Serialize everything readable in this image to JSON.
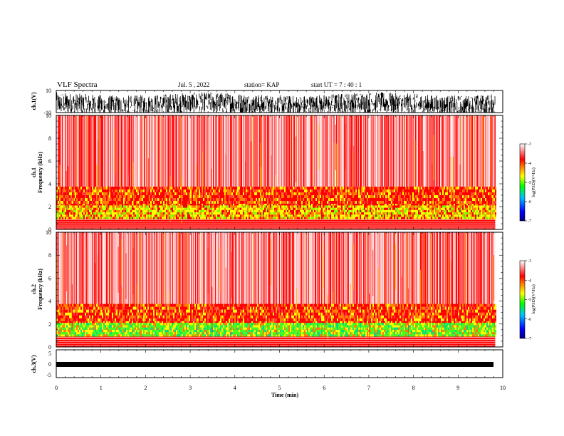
{
  "header": {
    "title": "VLF Spectra",
    "date": "Jul. 5 , 2022",
    "station": "station= KAP",
    "start": "start UT = 7 : 40 : 1"
  },
  "chart_data": [
    {
      "id": "ch1-waveform",
      "type": "line",
      "ylabel": "ch.1(V)",
      "yticks": [
        "10",
        "-10"
      ],
      "ylim": [
        -10,
        10
      ],
      "xlim": [
        0,
        10
      ],
      "x_end": 9.83,
      "grid": false
    },
    {
      "id": "ch1-spectrogram",
      "type": "heatmap",
      "ylabel": "ch.1 Frequency (kHz)",
      "ylim": [
        0,
        10
      ],
      "yticks": [
        "0",
        "2",
        "4",
        "6",
        "8",
        "10"
      ],
      "xlim": [
        0,
        10
      ],
      "x_end": 9.83,
      "colorbar": {
        "label": "log(PSD)(V²/Hz)",
        "range": [
          -7,
          -3
        ],
        "ticks": [
          "-3",
          "-4",
          "-5",
          "-6",
          "-7"
        ],
        "colors": [
          "#000080",
          "#0000ff",
          "#00c0ff",
          "#00ff00",
          "#ffff00",
          "#ff8000",
          "#ff0000",
          "#ffffff"
        ]
      }
    },
    {
      "id": "ch2-spectrogram",
      "type": "heatmap",
      "ylabel": "ch.2 Frequency (kHz)",
      "ylim": [
        0,
        10
      ],
      "yticks": [
        "0",
        "2",
        "4",
        "6",
        "8",
        "10"
      ],
      "xlim": [
        0,
        10
      ],
      "x_end": 9.83,
      "colorbar": {
        "label": "log(PSD)(V²/Hz)",
        "range": [
          -7,
          -3
        ],
        "ticks": [
          "-3",
          "-4",
          "-5",
          "-6",
          "-7"
        ]
      }
    },
    {
      "id": "ch3-waveform",
      "type": "line",
      "ylabel": "ch.3(V)",
      "yticks": [
        "5",
        "0",
        "-5"
      ],
      "ylim": [
        -5,
        5
      ],
      "xlim": [
        0,
        10
      ],
      "xlabel": "Time (min)",
      "xticks": [
        "0",
        "1",
        "2",
        "3",
        "4",
        "5",
        "6",
        "7",
        "8",
        "9",
        "10"
      ],
      "x_end": 9.83,
      "grid": false
    }
  ]
}
